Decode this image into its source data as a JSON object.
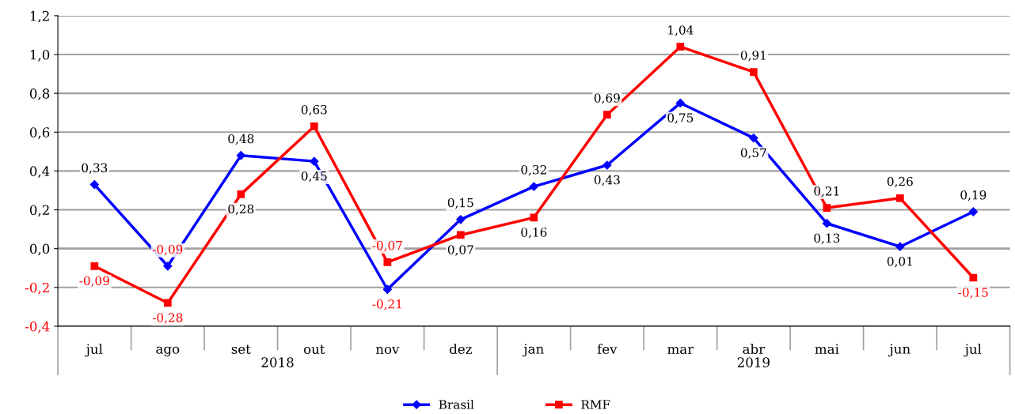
{
  "chart_data": {
    "type": "line",
    "categories": [
      "jul",
      "ago",
      "set",
      "out",
      "nov",
      "dez",
      "jan",
      "fev",
      "mar",
      "abr",
      "mai",
      "jun",
      "jul"
    ],
    "series": [
      {
        "name": "Brasil",
        "color": "#0000ff",
        "marker": "diamond",
        "values": [
          0.33,
          -0.09,
          0.48,
          0.45,
          -0.21,
          0.15,
          0.32,
          0.43,
          0.75,
          0.57,
          0.13,
          0.01,
          0.19
        ],
        "value_labels": [
          "0,33",
          "-0,09",
          "0,48",
          "0,45",
          "-0,21",
          "0,15",
          "0,32",
          "0,43",
          "0,75",
          "0,57",
          "0,13",
          "0,01",
          "0,19"
        ]
      },
      {
        "name": "RMF",
        "color": "#ff0000",
        "marker": "square",
        "values": [
          -0.09,
          -0.28,
          0.28,
          0.63,
          -0.07,
          0.07,
          0.16,
          0.69,
          1.04,
          0.91,
          0.21,
          0.26,
          -0.15
        ],
        "value_labels": [
          "-0,09",
          "-0,28",
          "0,28",
          "0,63",
          "-0,07",
          "0,07",
          "0,16",
          "0,69",
          "1,04",
          "0,91",
          "0,21",
          "0,26",
          "-0,15"
        ]
      }
    ],
    "ylim": [
      -0.4,
      1.2
    ],
    "yticks": [
      {
        "value": -0.4,
        "label": "-0,4"
      },
      {
        "value": -0.2,
        "label": "-0,2"
      },
      {
        "value": 0.0,
        "label": "0,0"
      },
      {
        "value": 0.2,
        "label": "0,2"
      },
      {
        "value": 0.4,
        "label": "0,4"
      },
      {
        "value": 0.6,
        "label": "0,6"
      },
      {
        "value": 0.8,
        "label": "0,8"
      },
      {
        "value": 1.0,
        "label": "1,0"
      },
      {
        "value": 1.2,
        "label": "1,2"
      }
    ],
    "annotations": [
      "2018",
      "2019"
    ],
    "grid": "y",
    "legend": "bottom",
    "line_style": "solid"
  }
}
